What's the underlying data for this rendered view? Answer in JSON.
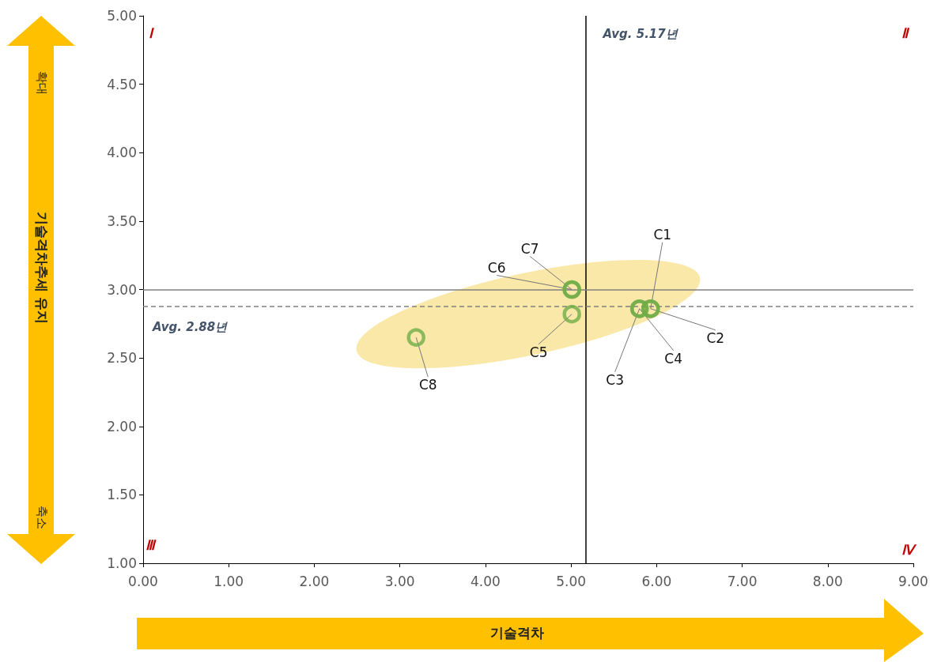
{
  "chart_data": {
    "type": "scatter",
    "xlabel": "기술격차",
    "ylabel": "기술격차추세 유지",
    "x": [
      5.93,
      5.93,
      5.8,
      5.8,
      5.01,
      5.01,
      5.01,
      3.19
    ],
    "values": [
      2.86,
      2.86,
      2.86,
      2.86,
      2.82,
      3.0,
      3.0,
      2.65
    ],
    "color": "#70ad47",
    "marker": "circle",
    "grid": false,
    "xlim": [
      0,
      9
    ],
    "xticks": [
      {
        "value": 0,
        "label": "0.00"
      },
      {
        "value": 1,
        "label": "1.00"
      },
      {
        "value": 2,
        "label": "2.00"
      },
      {
        "value": 3,
        "label": "3.00"
      },
      {
        "value": 4,
        "label": "4.00"
      },
      {
        "value": 5,
        "label": "5.00"
      },
      {
        "value": 6,
        "label": "6.00"
      },
      {
        "value": 7,
        "label": "7.00"
      },
      {
        "value": 8,
        "label": "8.00"
      },
      {
        "value": 9,
        "label": "9.00"
      }
    ],
    "ylim": [
      1,
      5
    ],
    "yticks": [
      {
        "value": 1,
        "label": "1.00"
      },
      {
        "value": 1.5,
        "label": "1.50"
      },
      {
        "value": 2,
        "label": "2.00"
      },
      {
        "value": 2.5,
        "label": "2.50"
      },
      {
        "value": 3,
        "label": "3.00"
      },
      {
        "value": 3.5,
        "label": "3.50"
      },
      {
        "value": 4,
        "label": "4.00"
      },
      {
        "value": 4.5,
        "label": "4.50"
      },
      {
        "value": 5,
        "label": "5.00"
      }
    ],
    "ref_lines": [
      {
        "axis": "x",
        "value": 5.17,
        "label": "Avg. 5.17년",
        "color": "#000000",
        "line_style": "solid"
      },
      {
        "axis": "y",
        "value": 2.88,
        "label": "Avg. 2.88년",
        "color": "#808080",
        "line_style": "dashed"
      },
      {
        "axis": "y",
        "value": 3.0,
        "label": null,
        "color": "#808080",
        "line_style": "solid"
      }
    ],
    "annotations": [
      {
        "text": "C1",
        "x": 5.93,
        "y": 2.86
      },
      {
        "text": "C2",
        "x": 5.93,
        "y": 2.86
      },
      {
        "text": "C3",
        "x": 5.8,
        "y": 2.86
      },
      {
        "text": "C4",
        "x": 5.8,
        "y": 2.86
      },
      {
        "text": "C5",
        "x": 5.01,
        "y": 2.82
      },
      {
        "text": "C6",
        "x": 5.01,
        "y": 3.0
      },
      {
        "text": "C7",
        "x": 5.01,
        "y": 3.0
      },
      {
        "text": "C8",
        "x": 3.19,
        "y": 2.65
      },
      "Ⅰ",
      "Ⅱ",
      "Ⅲ",
      "Ⅳ",
      "확대",
      "축소"
    ]
  }
}
